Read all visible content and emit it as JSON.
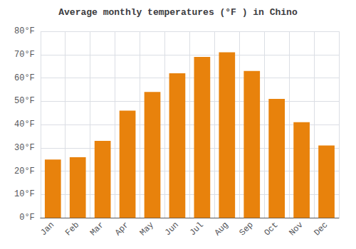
{
  "chart_data": {
    "type": "bar",
    "title": "Average monthly temperatures (°F ) in Chino",
    "categories": [
      "Jan",
      "Feb",
      "Mar",
      "Apr",
      "May",
      "Jun",
      "Jul",
      "Aug",
      "Sep",
      "Oct",
      "Nov",
      "Dec"
    ],
    "values": [
      25,
      26,
      33,
      46,
      54,
      62,
      69,
      71,
      63,
      51,
      41,
      31
    ],
    "color": "#E8820C",
    "ylim": [
      0,
      80
    ],
    "yticks": [
      {
        "value": 0,
        "label": "0°F"
      },
      {
        "value": 10,
        "label": "10°F"
      },
      {
        "value": 20,
        "label": "20°F"
      },
      {
        "value": 30,
        "label": "30°F"
      },
      {
        "value": 40,
        "label": "40°F"
      },
      {
        "value": 50,
        "label": "50°F"
      },
      {
        "value": 60,
        "label": "60°F"
      },
      {
        "value": 70,
        "label": "70°F"
      },
      {
        "value": 80,
        "label": "80°F"
      }
    ],
    "grid": true
  }
}
